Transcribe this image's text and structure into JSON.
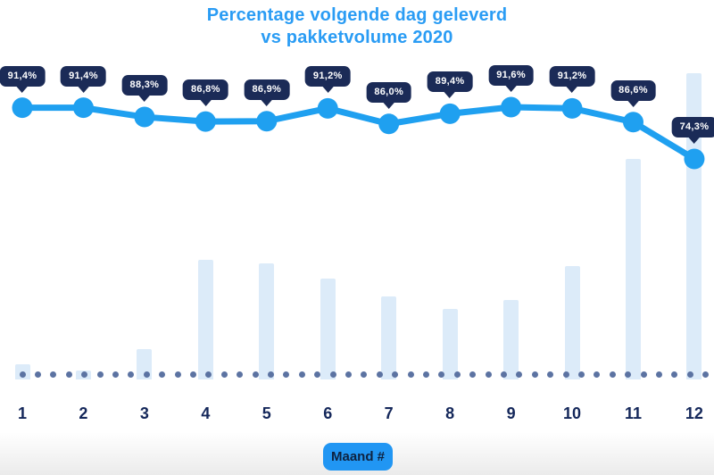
{
  "title": {
    "line1": "Percentage volgende dag geleverd",
    "line2": "vs pakketvolume 2020"
  },
  "x_axis": {
    "badge_label": "Maand #",
    "tick_labels": [
      "1",
      "2",
      "3",
      "4",
      "5",
      "6",
      "7",
      "8",
      "9",
      "10",
      "11",
      "12"
    ]
  },
  "colors": {
    "title_blue": "#2a9cf4",
    "line_blue": "#1fa0f0",
    "tooltip_navy": "#1b2b57",
    "bar_light": "#dcebf9",
    "dot_slate": "#5c73a2",
    "label_navy": "#14275a",
    "badge_blue": "#2196f3",
    "badge_text": "#0e2240"
  },
  "chart_data": [
    {
      "type": "line",
      "name": "Percentage volgende dag geleverd",
      "categories": [
        "1",
        "2",
        "3",
        "4",
        "5",
        "6",
        "7",
        "8",
        "9",
        "10",
        "11",
        "12"
      ],
      "values": [
        91.4,
        91.4,
        88.3,
        86.8,
        86.9,
        91.2,
        86.0,
        89.4,
        91.6,
        91.2,
        86.6,
        74.3
      ],
      "point_labels": [
        "91,4%",
        "91,4%",
        "88,3%",
        "86,8%",
        "86,9%",
        "91,2%",
        "86,0%",
        "89,4%",
        "91,6%",
        "91,2%",
        "86,6%",
        "74,3%"
      ],
      "unit": "percent",
      "legend": "none",
      "grid": false
    },
    {
      "type": "bar",
      "name": "Pakketvolume 2020",
      "categories": [
        "1",
        "2",
        "3",
        "4",
        "5",
        "6",
        "7",
        "8",
        "9",
        "10",
        "11",
        "12"
      ],
      "values": [
        5,
        3,
        10,
        39,
        38,
        33,
        27,
        23,
        26,
        37,
        72,
        100
      ],
      "unit": "relative volume (unlabeled axis, month 12 = 100)",
      "legend": "none",
      "grid": false
    }
  ],
  "baseline": {
    "style": "dotted",
    "dot_count": 45
  }
}
